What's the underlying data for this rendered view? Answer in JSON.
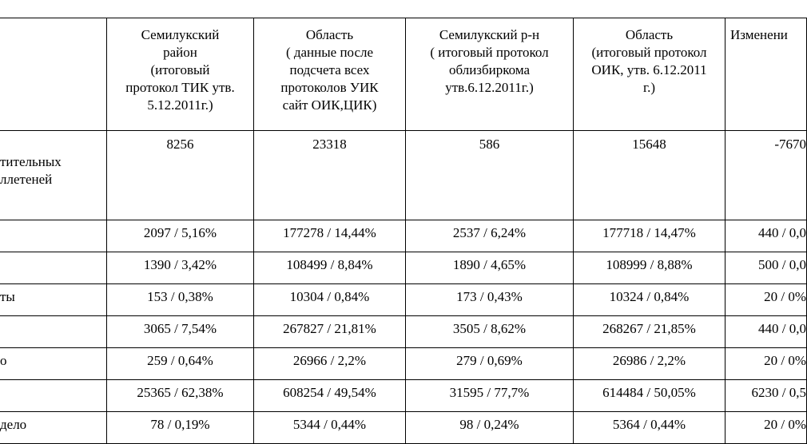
{
  "table": {
    "header": [
      [],
      [
        "Семилукский",
        "район",
        "(итоговый",
        "протокол ТИК утв.",
        "5.12.2011г.)"
      ],
      [
        "Область",
        "( данные после",
        "подсчета всех",
        "протоколов УИК",
        "сайт ОИК,ЦИК)"
      ],
      [
        "Семилукский р-н",
        "( итоговый протокол",
        "облизбиркома",
        "утв.6.12.2011г.)"
      ],
      [
        "Область",
        "(итоговый протокол",
        "ОИК, утв. 6.12.2011",
        "г.)"
      ],
      [
        "Изменени"
      ]
    ],
    "rows": [
      {
        "label": [
          "тительных",
          "ллетеней"
        ],
        "cells": [
          "8256",
          "23318",
          "586",
          "15648",
          "-7670"
        ]
      },
      {
        "label": [],
        "cells": [
          "2097 / 5,16%",
          "177278 / 14,44%",
          "2537 / 6,24%",
          "177718 / 14,47%",
          "440 / 0,0"
        ]
      },
      {
        "label": [],
        "cells": [
          "1390 / 3,42%",
          "108499 / 8,84%",
          "1890 / 4,65%",
          "108999 / 8,88%",
          "500 / 0,0"
        ]
      },
      {
        "label": [
          "ты"
        ],
        "cells": [
          "153 / 0,38%",
          "10304 / 0,84%",
          "173 / 0,43%",
          "10324 / 0,84%",
          "20 / 0%"
        ]
      },
      {
        "label": [],
        "cells": [
          "3065 / 7,54%",
          "267827 / 21,81%",
          "3505 / 8,62%",
          "268267 / 21,85%",
          "440 / 0,0"
        ]
      },
      {
        "label": [
          "о"
        ],
        "cells": [
          "259 / 0,64%",
          "26966 / 2,2%",
          "279 / 0,69%",
          "26986 / 2,2%",
          "20 / 0%"
        ]
      },
      {
        "label": [],
        "cells": [
          "25365 / 62,38%",
          "608254 / 49,54%",
          "31595 / 77,7%",
          "614484 / 50,05%",
          "6230 / 0,5"
        ]
      },
      {
        "label": [
          "дело"
        ],
        "cells": [
          "78 / 0,19%",
          "5344 / 0,44%",
          "98 / 0,24%",
          "5364 / 0,44%",
          "20 / 0%"
        ]
      }
    ]
  }
}
